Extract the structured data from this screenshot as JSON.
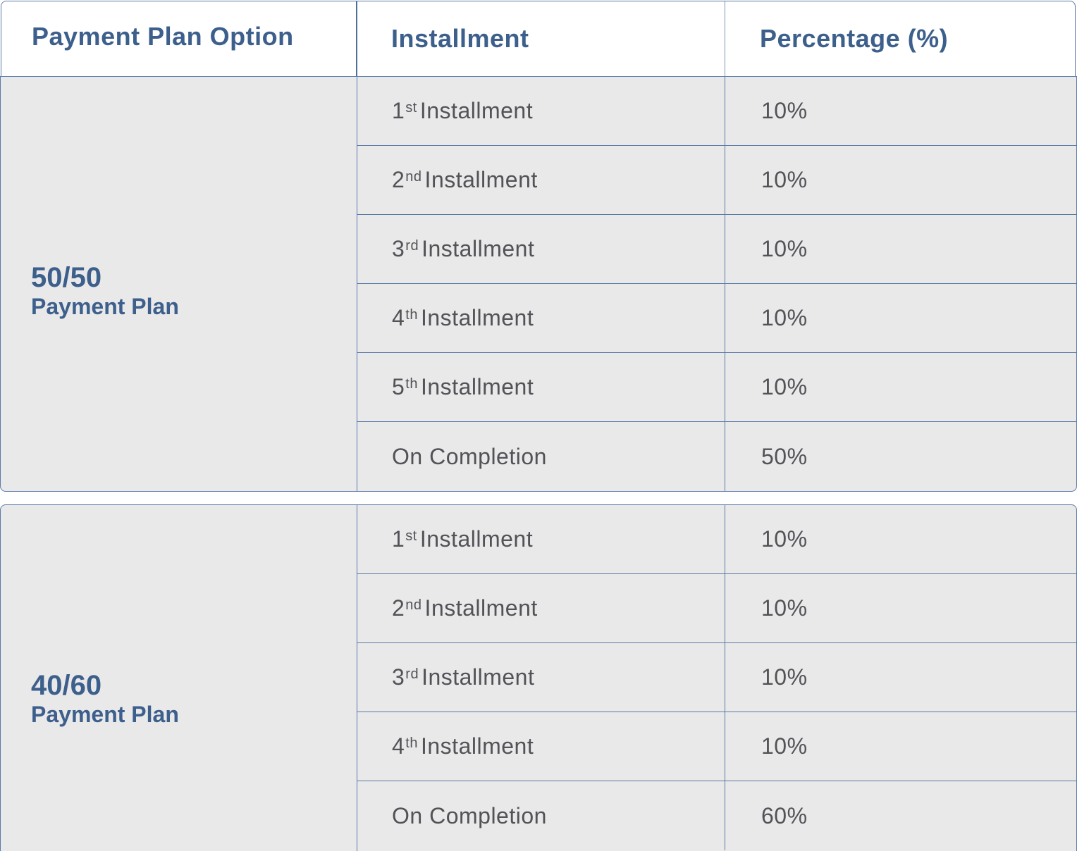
{
  "header": {
    "col1": "Payment Plan Option",
    "col2": "Installment",
    "col3": "Percentage (%)"
  },
  "plans": [
    {
      "ratio": "50/50",
      "name": "Payment Plan",
      "rows": [
        {
          "num": "1",
          "suffix": "st",
          "label": "Installment",
          "pct": "10%"
        },
        {
          "num": "2",
          "suffix": "nd",
          "label": "Installment",
          "pct": "10%"
        },
        {
          "num": "3",
          "suffix": "rd",
          "label": "Installment",
          "pct": "10%"
        },
        {
          "num": "4",
          "suffix": "th",
          "label": "Installment",
          "pct": "10%"
        },
        {
          "num": "5",
          "suffix": "th",
          "label": "Installment",
          "pct": "10%"
        },
        {
          "num": "",
          "suffix": "",
          "label": "On Completion",
          "pct": "50%"
        }
      ]
    },
    {
      "ratio": "40/60",
      "name": "Payment Plan",
      "rows": [
        {
          "num": "1",
          "suffix": "st",
          "label": "Installment",
          "pct": "10%"
        },
        {
          "num": "2",
          "suffix": "nd",
          "label": "Installment",
          "pct": "10%"
        },
        {
          "num": "3",
          "suffix": "rd",
          "label": "Installment",
          "pct": "10%"
        },
        {
          "num": "4",
          "suffix": "th",
          "label": "Installment",
          "pct": "10%"
        },
        {
          "num": "",
          "suffix": "",
          "label": "On Completion",
          "pct": "60%"
        }
      ]
    }
  ]
}
